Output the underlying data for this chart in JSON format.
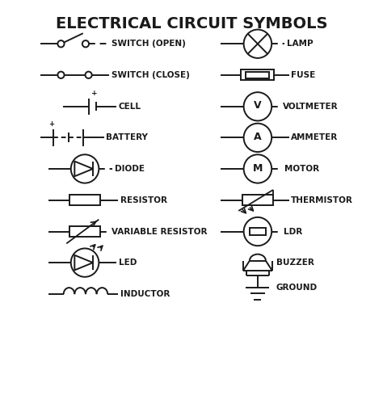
{
  "title": "ELECTRICAL CIRCUIT SYMBOLS",
  "title_fontsize": 14,
  "title_fontweight": "bold",
  "background_color": "#ffffff",
  "line_color": "#1a1a1a",
  "text_color": "#1a1a1a",
  "label_fontsize": 7.5,
  "label_fontweight": "bold",
  "row_labels": [
    "SWITCH (OPEN)",
    "LAMP",
    "SWITCH (CLOSE)",
    "FUSE",
    "CELL",
    "VOLTMETER",
    "BATTERY",
    "AMMETER",
    "DIODE",
    "MOTOR",
    "RESISTOR",
    "THERMISTOR",
    "VARIABLE RESISTOR",
    "LDR",
    "LED",
    "BUZZER",
    "INDUCTOR",
    "GROUND"
  ]
}
